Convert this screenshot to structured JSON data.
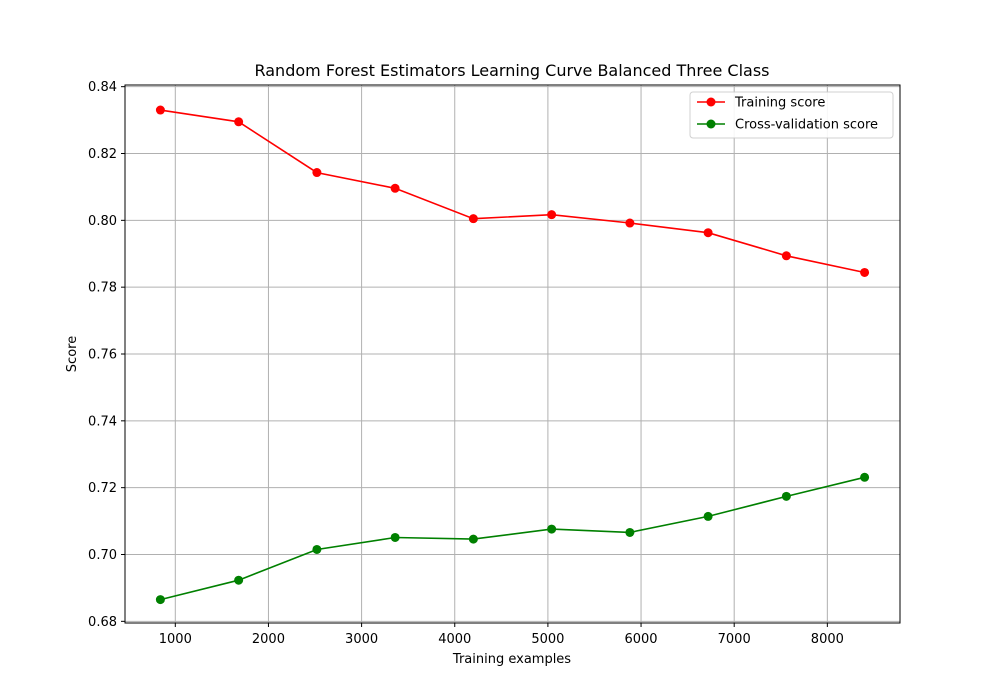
{
  "chart_data": {
    "type": "line",
    "title": "Random Forest Estimators Learning Curve Balanced Three Class",
    "xlabel": "Training examples",
    "ylabel": "Score",
    "xlim": [
      460,
      8780
    ],
    "ylim": [
      0.6795,
      0.8405
    ],
    "x_ticks": [
      1000,
      2000,
      3000,
      4000,
      5000,
      6000,
      7000,
      8000
    ],
    "y_ticks": [
      0.68,
      0.7,
      0.72,
      0.74,
      0.76,
      0.78,
      0.8,
      0.82,
      0.84
    ],
    "y_tick_labels": [
      "0.68",
      "0.70",
      "0.72",
      "0.74",
      "0.76",
      "0.78",
      "0.80",
      "0.82",
      "0.84"
    ],
    "grid": true,
    "legend_position": "top-right",
    "x": [
      840,
      1680,
      2520,
      3360,
      4200,
      5040,
      5880,
      6720,
      7560,
      8400
    ],
    "series": [
      {
        "name": "Training score",
        "color": "#ff0000",
        "values": [
          0.833,
          0.8295,
          0.8143,
          0.8096,
          0.8005,
          0.8017,
          0.7992,
          0.7963,
          0.7894,
          0.7844
        ]
      },
      {
        "name": "Cross-validation score",
        "color": "#008000",
        "values": [
          0.6865,
          0.6923,
          0.7015,
          0.7051,
          0.7046,
          0.7076,
          0.7066,
          0.7114,
          0.7174,
          0.7231
        ]
      }
    ]
  }
}
